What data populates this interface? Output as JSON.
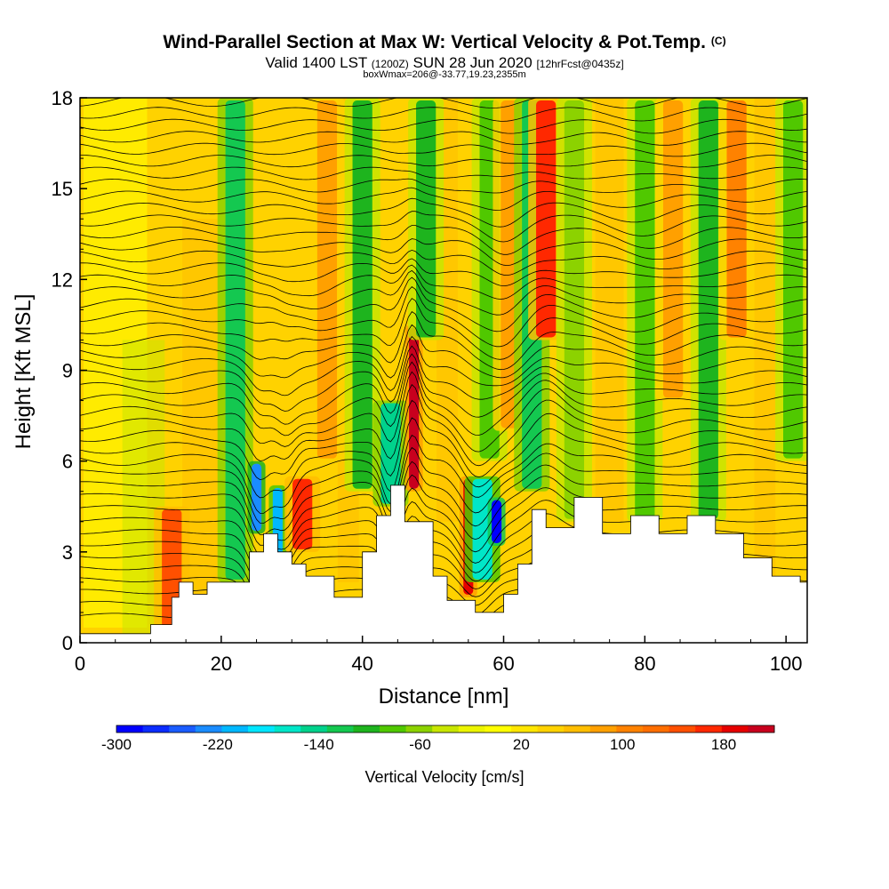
{
  "header": {
    "title": "Wind-Parallel Section at Max W: Vertical Velocity & Pot.Temp.",
    "copyright": "(C)",
    "valid_prefix": "Valid 1400 LST",
    "valid_utc": "(1200Z)",
    "valid_date": "SUN 28 Jun 2020",
    "forecast": "[12hrFcst@0435z]",
    "box_info": "boxWmax=206@-33.77,19.23,2355m"
  },
  "chart_data": {
    "type": "heatmap",
    "title": "Wind-Parallel Section at Max W: Vertical Velocity & Pot.Temp.",
    "xlabel": "Distance [nm]",
    "ylabel": "Height [Kft MSL]",
    "xlim": [
      0,
      103
    ],
    "ylim": [
      0,
      18
    ],
    "xticks": [
      0,
      20,
      40,
      60,
      80,
      100
    ],
    "yticks": [
      0,
      3,
      6,
      9,
      12,
      15,
      18
    ],
    "colorbar": {
      "label": "Vertical Velocity [cm/s]",
      "range": [
        -300,
        220
      ],
      "tick_values": [
        -300,
        -220,
        -140,
        -60,
        20,
        100,
        180
      ],
      "tick_labels": [
        "-300",
        "-220",
        "-140",
        "-60",
        "20",
        "100",
        "180"
      ],
      "colors": [
        "#0000ff",
        "#0b2cff",
        "#1a5cff",
        "#1a8cff",
        "#00b8ff",
        "#00e6ff",
        "#00e6c8",
        "#00d28c",
        "#14c850",
        "#1eb41e",
        "#50c800",
        "#8cd200",
        "#c8e600",
        "#ecf500",
        "#ffff00",
        "#ffe600",
        "#ffd200",
        "#ffbe00",
        "#ffa000",
        "#ff8200",
        "#ff6e00",
        "#ff5000",
        "#ff2800",
        "#e60000",
        "#c8001e"
      ]
    },
    "terrain": {
      "x": [
        0,
        10,
        10,
        13,
        13,
        14,
        14,
        16,
        16,
        18,
        18,
        24,
        24,
        26,
        26,
        28,
        28,
        30,
        30,
        32,
        32,
        36,
        36,
        40,
        40,
        42,
        42,
        44,
        44,
        46,
        46,
        50,
        50,
        52,
        52,
        56,
        56,
        60,
        60,
        62,
        62,
        64,
        64,
        66,
        66,
        70,
        70,
        74,
        74,
        78,
        78,
        82,
        82,
        86,
        86,
        90,
        90,
        94,
        94,
        98,
        98,
        102,
        102,
        103
      ],
      "y": [
        0.3,
        0.3,
        0.6,
        0.6,
        1.5,
        1.5,
        2.0,
        2.0,
        1.6,
        1.6,
        2.0,
        2.0,
        3.0,
        3.0,
        3.6,
        3.6,
        3.0,
        3.0,
        2.6,
        2.6,
        2.2,
        2.2,
        1.5,
        1.5,
        3.0,
        3.0,
        4.2,
        4.2,
        5.2,
        5.2,
        4.0,
        4.0,
        2.2,
        2.2,
        1.4,
        1.4,
        1.0,
        1.0,
        1.6,
        1.6,
        2.6,
        2.6,
        4.4,
        4.4,
        3.8,
        3.8,
        4.8,
        4.8,
        3.6,
        3.6,
        4.2,
        4.2,
        3.6,
        3.6,
        4.2,
        4.2,
        3.6,
        3.6,
        2.8,
        2.8,
        2.2,
        2.2,
        2.0,
        2.0
      ]
    },
    "w_features": [
      {
        "x": 13,
        "z_bottom": 0.4,
        "z_top": 4.5,
        "w": 150
      },
      {
        "x": 22,
        "z_bottom": 2.0,
        "z_top": 18,
        "w": -120
      },
      {
        "x": 25,
        "z_bottom": 3.6,
        "z_top": 6.0,
        "w": -230
      },
      {
        "x": 28,
        "z_bottom": 2.8,
        "z_top": 5.2,
        "w": -200
      },
      {
        "x": 31.5,
        "z_bottom": 3.0,
        "z_top": 5.5,
        "w": 160
      },
      {
        "x": 35,
        "z_bottom": 6.0,
        "z_top": 18,
        "w": 90
      },
      {
        "x": 40,
        "z_bottom": 5.0,
        "z_top": 18,
        "w": -110
      },
      {
        "x": 44,
        "z_bottom": 4.5,
        "z_top": 8.0,
        "w": -150
      },
      {
        "x": 47.3,
        "z_bottom": 5.0,
        "z_top": 10.5,
        "w": 206
      },
      {
        "x": 49,
        "z_bottom": 10.0,
        "z_top": 18,
        "w": -100
      },
      {
        "x": 55,
        "z_bottom": 1.5,
        "z_top": 5.5,
        "w": 190
      },
      {
        "x": 57,
        "z_bottom": 2.0,
        "z_top": 5.5,
        "w": -170
      },
      {
        "x": 59,
        "z_bottom": 3.2,
        "z_top": 4.8,
        "w": -280
      },
      {
        "x": 58,
        "z_bottom": 6.0,
        "z_top": 18,
        "w": -90
      },
      {
        "x": 61,
        "z_bottom": 7.0,
        "z_top": 18,
        "w": 80
      },
      {
        "x": 64,
        "z_bottom": 5.0,
        "z_top": 18,
        "w": -130
      },
      {
        "x": 66,
        "z_bottom": 10.0,
        "z_top": 18,
        "w": 160
      },
      {
        "x": 70,
        "z_bottom": 4.0,
        "z_top": 18,
        "w": -70
      },
      {
        "x": 80,
        "z_bottom": 4.0,
        "z_top": 18,
        "w": -90
      },
      {
        "x": 84,
        "z_bottom": 8.0,
        "z_top": 18,
        "w": 80
      },
      {
        "x": 89,
        "z_bottom": 4.0,
        "z_top": 18,
        "w": -100
      },
      {
        "x": 93,
        "z_bottom": 10.0,
        "z_top": 18,
        "w": 100
      },
      {
        "x": 101,
        "z_bottom": 6.0,
        "z_top": 18,
        "w": -90
      }
    ],
    "isentropes": {
      "count": 44,
      "z_start": 0.9,
      "z_end": 17.9,
      "perturbations": [
        {
          "x": 25.5,
          "z": 5.0,
          "amplitude": -1.6,
          "width": 2.2
        },
        {
          "x": 29,
          "z": 5.5,
          "amplitude": -1.2,
          "width": 2.0
        },
        {
          "x": 33,
          "z": 8.5,
          "amplitude": -0.6,
          "width": 4.0
        },
        {
          "x": 44,
          "z": 6.0,
          "amplitude": -1.3,
          "width": 1.6
        },
        {
          "x": 47,
          "z": 8.0,
          "amplitude": 1.2,
          "width": 1.4
        },
        {
          "x": 56,
          "z": 5.0,
          "amplitude": -1.4,
          "width": 3.0
        },
        {
          "x": 60,
          "z": 11.0,
          "amplitude": -0.8,
          "width": 3.5
        },
        {
          "x": 66,
          "z": 6.0,
          "amplitude": 0.7,
          "width": 3.0
        },
        {
          "x": 80,
          "z": 12.0,
          "amplitude": -0.4,
          "width": 6.0
        }
      ]
    }
  }
}
